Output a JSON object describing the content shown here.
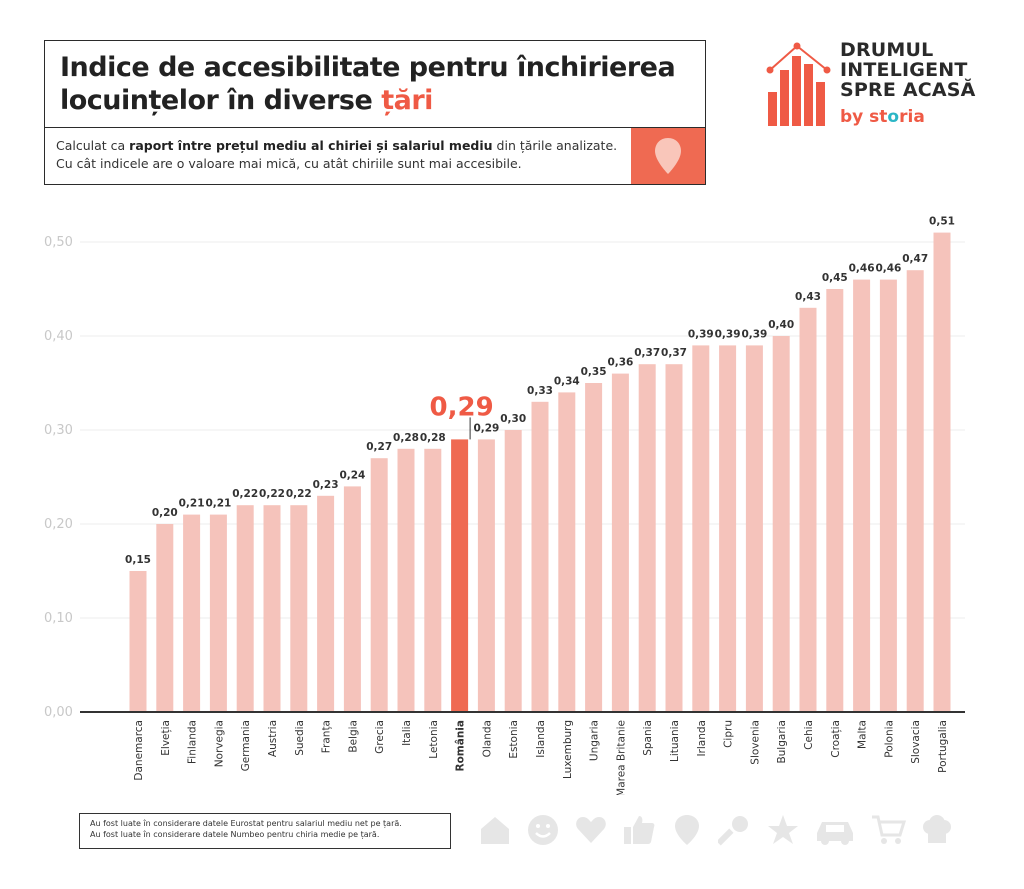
{
  "header": {
    "title_line1": "Indice de accesibilitate pentru închirierea",
    "title_line2_prefix": "locuințelor în diverse ",
    "title_line2_accent": "țări",
    "sub_part1": "Calculat ca ",
    "sub_bold1": "raport între prețul mediu al chiriei și salariul mediu",
    "sub_part2": " din țările analizate.",
    "sub_line2": "Cu cât indicele are o valoare mai mică, cu atât chiriile sunt mai accesibile.",
    "pin_icon": "location-pin-icon"
  },
  "logo": {
    "line1": "DRUMUL",
    "line2": "INTELIGENT",
    "line3": "SPRE ACASĂ",
    "by": "by ",
    "brand_st": "st",
    "brand_o": "o",
    "brand_ria": "ria",
    "icon": "house-bars-logo-icon"
  },
  "chart_data": {
    "type": "bar",
    "title": "Indice de accesibilitate pentru închirierea locuințelor în diverse țări",
    "ylim": [
      0,
      0.5
    ],
    "yticks": [
      "0,00",
      "0,10",
      "0,20",
      "0,30",
      "0,40",
      "0,50"
    ],
    "grid": true,
    "highlight": "România",
    "highlight_label": "0,29",
    "categories": [
      "Danemarca",
      "Elveția",
      "Finlanda",
      "Norvegia",
      "Germania",
      "Austria",
      "Suedia",
      "Franța",
      "Belgia",
      "Grecia",
      "Italia",
      "Letonia",
      "România",
      "Olanda",
      "Estonia",
      "Islanda",
      "Luxemburg",
      "Ungaria",
      "Marea Britanie",
      "Spania",
      "Lituania",
      "Irlanda",
      "Cipru",
      "Slovenia",
      "Bulgaria",
      "Cehia",
      "Croația",
      "Malta",
      "Polonia",
      "Slovacia",
      "Portugalia"
    ],
    "values": [
      0.15,
      0.2,
      0.21,
      0.21,
      0.22,
      0.22,
      0.22,
      0.23,
      0.24,
      0.27,
      0.28,
      0.28,
      0.29,
      0.29,
      0.3,
      0.33,
      0.34,
      0.35,
      0.36,
      0.37,
      0.37,
      0.39,
      0.39,
      0.39,
      0.4,
      0.43,
      0.45,
      0.46,
      0.46,
      0.47,
      0.51
    ],
    "value_labels": [
      "0,15",
      "0,20",
      "0,21",
      "0,21",
      "0,22",
      "0,22",
      "0,22",
      "0,23",
      "0,24",
      "0,27",
      "0,28",
      "0,28",
      "",
      "0,29",
      "0,30",
      "0,33",
      "0,34",
      "0,35",
      "0,36",
      "0,37",
      "0,37",
      "0,39",
      "0,39",
      "0,39",
      "0,40",
      "0,43",
      "0,45",
      "0,46",
      "0,46",
      "0,47",
      "0,51"
    ],
    "colors": {
      "bar": "#f5c3bb",
      "highlight": "#ef6a52",
      "highlight_text": "#ef5a45"
    }
  },
  "notes": {
    "line1": "Au fost luate în considerare datele Eurostat pentru salariul mediu net pe țară.",
    "line2": "Au fost luate în considerare datele Numbeo pentru chiria medie pe țară."
  },
  "footer_icons": [
    "house-icon",
    "smiley-icon",
    "heart-icon",
    "thumbs-up-icon",
    "pin-icon",
    "key-icon",
    "star-icon",
    "car-icon",
    "cart-icon",
    "chef-hat-icon"
  ]
}
